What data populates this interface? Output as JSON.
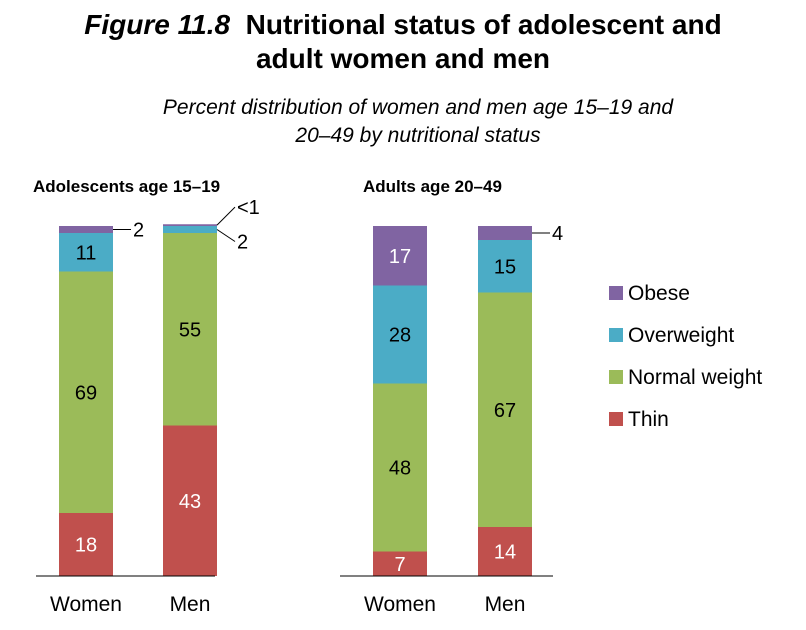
{
  "title": {
    "figure": "Figure 11.8",
    "line1": "Nutritional status of adolescent and",
    "line2": "adult women and men"
  },
  "subtitle": {
    "line1": "Percent distribution of women and men age 15–19 and",
    "line2": "20–49 by nutritional status"
  },
  "chart_data": {
    "type": "bar",
    "stacked": true,
    "unit": "percent",
    "categories": [
      "Women",
      "Men",
      "Women",
      "Men"
    ],
    "groups": [
      {
        "label": "Adolescents age 15–19",
        "categories": [
          "Women",
          "Men"
        ]
      },
      {
        "label": "Adults age 20–49",
        "categories": [
          "Women",
          "Men"
        ]
      }
    ],
    "series": [
      {
        "name": "Thin",
        "color": "#c0504d",
        "values": [
          18,
          43,
          7,
          14
        ],
        "labels": [
          "18",
          "43",
          "7",
          "14"
        ]
      },
      {
        "name": "Normal weight",
        "color": "#9bbb59",
        "values": [
          69,
          55,
          48,
          67
        ],
        "labels": [
          "69",
          "55",
          "48",
          "67"
        ]
      },
      {
        "name": "Overweight",
        "color": "#4bacc6",
        "values": [
          11,
          2,
          28,
          15
        ],
        "labels": [
          "11",
          "2",
          "28",
          "15"
        ]
      },
      {
        "name": "Obese",
        "color": "#8064a2",
        "values": [
          2,
          0.5,
          17,
          4
        ],
        "labels": [
          "2",
          "<1",
          "17",
          "4"
        ]
      }
    ],
    "legend_order": [
      "Obese",
      "Overweight",
      "Normal weight",
      "Thin"
    ],
    "legend_position": "right",
    "ylim": [
      0,
      100
    ],
    "grid": false
  }
}
